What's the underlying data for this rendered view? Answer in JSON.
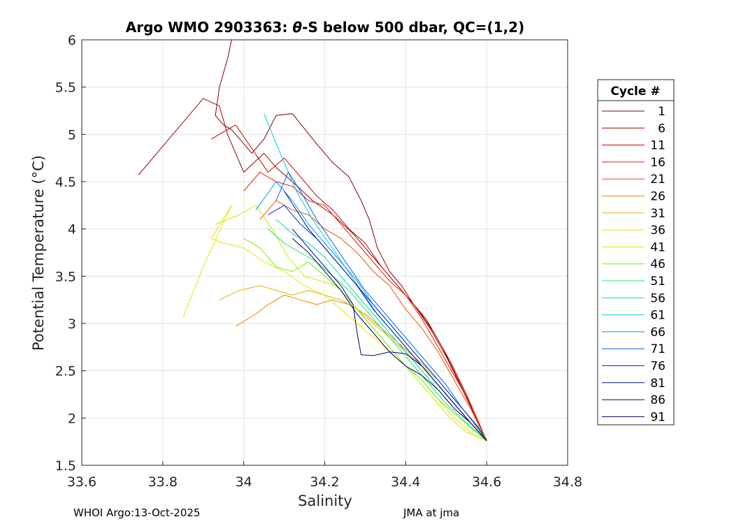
{
  "chart_data": {
    "type": "line",
    "title_prefix": "Argo WMO 2903363: ",
    "title_symbol": "θ",
    "title_suffix": "-S below 500 dbar,  QC=(1,2)",
    "xlabel": "Salinity",
    "ylabel": "Potential Temperature (°C)",
    "xlim": [
      33.6,
      34.8
    ],
    "ylim": [
      1.5,
      6
    ],
    "xticks": [
      "33.6",
      "33.8",
      "34",
      "34.2",
      "34.4",
      "34.6",
      "34.8"
    ],
    "yticks": [
      "1.5",
      "2",
      "2.5",
      "3",
      "3.5",
      "4",
      "4.5",
      "5",
      "5.5",
      "6"
    ],
    "grid": true,
    "legend": {
      "title": "Cycle #",
      "placement": "right",
      "entries": [
        {
          "label": "1",
          "color": "#800000"
        },
        {
          "label": "6",
          "color": "#a00000"
        },
        {
          "label": "11",
          "color": "#c80000"
        },
        {
          "label": "16",
          "color": "#e02000"
        },
        {
          "label": "21",
          "color": "#f05000"
        },
        {
          "label": "26",
          "color": "#f08000"
        },
        {
          "label": "31",
          "color": "#e8b000"
        },
        {
          "label": "36",
          "color": "#f0e000"
        },
        {
          "label": "41",
          "color": "#b8f000"
        },
        {
          "label": "46",
          "color": "#70f000"
        },
        {
          "label": "51",
          "color": "#20e860"
        },
        {
          "label": "56",
          "color": "#00e0a0"
        },
        {
          "label": "61",
          "color": "#00c8e0"
        },
        {
          "label": "66",
          "color": "#0098e8"
        },
        {
          "label": "71",
          "color": "#0060f0"
        },
        {
          "label": "76",
          "color": "#0030d0"
        },
        {
          "label": "81",
          "color": "#0010a8"
        },
        {
          "label": "86",
          "color": "#000080"
        },
        {
          "label": "91",
          "color": "#000060"
        }
      ]
    },
    "series": [
      {
        "name": "1",
        "color": "#800000",
        "x": [
          33.97,
          33.96,
          33.94,
          33.93,
          33.95,
          33.97,
          33.99,
          34.02,
          34.05,
          34.08,
          34.12,
          34.18,
          34.22,
          34.26,
          34.29,
          34.31,
          34.33,
          34.36,
          34.39,
          34.42,
          34.45,
          34.49,
          34.53,
          34.57,
          34.6
        ],
        "y": [
          6.0,
          5.8,
          5.5,
          5.2,
          5.1,
          5.05,
          4.95,
          4.8,
          4.95,
          5.2,
          5.22,
          4.9,
          4.7,
          4.55,
          4.3,
          4.1,
          3.8,
          3.55,
          3.4,
          3.2,
          3.05,
          2.75,
          2.4,
          2.05,
          1.76
        ]
      },
      {
        "name": "6",
        "color": "#a00000",
        "x": [
          33.74,
          33.9,
          33.94,
          33.96,
          34.0,
          34.05,
          34.08,
          34.12,
          34.17,
          34.22,
          34.27,
          34.31,
          34.35,
          34.39,
          34.43,
          34.47,
          34.51,
          34.55,
          34.6
        ],
        "y": [
          4.57,
          5.38,
          5.3,
          5.0,
          4.6,
          4.8,
          4.65,
          4.5,
          4.3,
          4.15,
          3.95,
          3.75,
          3.55,
          3.35,
          3.15,
          2.9,
          2.6,
          2.25,
          1.76
        ]
      },
      {
        "name": "11",
        "color": "#c80000",
        "x": [
          33.92,
          33.98,
          34.02,
          34.06,
          34.1,
          34.14,
          34.18,
          34.22,
          34.26,
          34.3,
          34.34,
          34.38,
          34.42,
          34.46,
          34.5,
          34.54,
          34.6
        ],
        "y": [
          4.95,
          5.1,
          4.85,
          4.6,
          4.75,
          4.55,
          4.35,
          4.2,
          4.0,
          3.85,
          3.6,
          3.4,
          3.2,
          2.95,
          2.65,
          2.3,
          1.76
        ]
      },
      {
        "name": "16",
        "color": "#e02000",
        "x": [
          34.0,
          34.04,
          34.08,
          34.12,
          34.16,
          34.2,
          34.24,
          34.28,
          34.32,
          34.36,
          34.4,
          34.44,
          34.48,
          34.52,
          34.56,
          34.6
        ],
        "y": [
          4.4,
          4.6,
          4.5,
          4.45,
          4.3,
          4.25,
          4.05,
          3.85,
          3.65,
          3.45,
          3.3,
          3.05,
          2.75,
          2.45,
          2.15,
          1.76
        ]
      },
      {
        "name": "21",
        "color": "#f05000",
        "x": [
          34.04,
          34.08,
          34.12,
          34.16,
          34.2,
          34.24,
          34.28,
          34.32,
          34.36,
          34.4,
          34.44,
          34.48,
          34.52,
          34.56,
          34.6
        ],
        "y": [
          4.1,
          4.3,
          4.2,
          4.15,
          4.0,
          3.9,
          3.75,
          3.55,
          3.4,
          3.15,
          2.95,
          2.7,
          2.4,
          2.1,
          1.76
        ]
      },
      {
        "name": "26",
        "color": "#f08000",
        "x": [
          33.98,
          34.03,
          34.06,
          34.1,
          34.14,
          34.18,
          34.22,
          34.26,
          34.3,
          34.34,
          34.38,
          34.42,
          34.46,
          34.5,
          34.55,
          34.6
        ],
        "y": [
          2.97,
          3.1,
          3.2,
          3.3,
          3.25,
          3.2,
          3.25,
          3.2,
          3.1,
          2.95,
          2.8,
          2.65,
          2.5,
          2.3,
          2.05,
          1.76
        ]
      },
      {
        "name": "31",
        "color": "#e8b000",
        "x": [
          33.94,
          33.99,
          34.04,
          34.08,
          34.12,
          34.16,
          34.2,
          34.24,
          34.28,
          34.32,
          34.36,
          34.4,
          34.44,
          34.48,
          34.52,
          34.56,
          34.6
        ],
        "y": [
          3.25,
          3.35,
          3.4,
          3.35,
          3.3,
          3.35,
          3.3,
          3.25,
          3.15,
          3.0,
          2.85,
          2.7,
          2.55,
          2.4,
          2.2,
          2.0,
          1.78
        ]
      },
      {
        "name": "36",
        "color": "#f0e000",
        "x": [
          33.85,
          33.9,
          33.97,
          33.92,
          33.95,
          34.0,
          34.05,
          34.1,
          34.15,
          34.2,
          34.24,
          34.28,
          34.32,
          34.36,
          34.4,
          34.44,
          34.48,
          34.52,
          34.56,
          34.6
        ],
        "y": [
          3.06,
          3.6,
          4.25,
          3.9,
          3.85,
          3.8,
          3.65,
          3.55,
          3.4,
          3.3,
          3.15,
          3.0,
          2.85,
          2.7,
          2.55,
          2.4,
          2.2,
          2.0,
          1.85,
          1.76
        ]
      },
      {
        "name": "41",
        "color": "#b8f000",
        "x": [
          33.93,
          33.99,
          34.03,
          34.07,
          34.11,
          34.15,
          34.19,
          34.23,
          34.27,
          34.31,
          34.35,
          34.39,
          34.43,
          34.47,
          34.51,
          34.55,
          34.6
        ],
        "y": [
          4.05,
          4.15,
          4.25,
          4.0,
          3.7,
          3.5,
          3.45,
          3.4,
          3.2,
          3.0,
          2.8,
          2.6,
          2.4,
          2.2,
          2.0,
          1.85,
          1.76
        ]
      },
      {
        "name": "46",
        "color": "#70f000",
        "x": [
          34.0,
          34.04,
          34.08,
          34.12,
          34.16,
          34.2,
          34.24,
          34.28,
          34.32,
          34.36,
          34.4,
          34.44,
          34.48,
          34.52,
          34.56,
          34.6
        ],
        "y": [
          3.9,
          3.8,
          3.6,
          3.55,
          3.65,
          3.5,
          3.35,
          3.15,
          2.95,
          2.75,
          2.55,
          2.4,
          2.2,
          2.05,
          1.9,
          1.76
        ]
      },
      {
        "name": "51",
        "color": "#20e860",
        "x": [
          34.06,
          34.1,
          34.14,
          34.18,
          34.22,
          34.26,
          34.3,
          34.34,
          34.38,
          34.42,
          34.46,
          34.5,
          34.55,
          34.6
        ],
        "y": [
          4.0,
          3.85,
          3.75,
          3.65,
          3.5,
          3.35,
          3.15,
          2.95,
          2.75,
          2.55,
          2.35,
          2.15,
          1.95,
          1.76
        ]
      },
      {
        "name": "56",
        "color": "#00e0a0",
        "x": [
          34.08,
          34.12,
          34.16,
          34.2,
          34.24,
          34.28,
          34.32,
          34.36,
          34.4,
          34.44,
          34.48,
          34.52,
          34.56,
          34.6
        ],
        "y": [
          4.1,
          3.95,
          3.85,
          3.7,
          3.5,
          3.3,
          3.1,
          2.9,
          2.7,
          2.5,
          2.3,
          2.1,
          1.95,
          1.76
        ]
      },
      {
        "name": "61",
        "color": "#00c8e0",
        "x": [
          34.05,
          34.09,
          34.13,
          34.17,
          34.21,
          34.25,
          34.29,
          34.33,
          34.37,
          34.41,
          34.45,
          34.49,
          34.53,
          34.57,
          34.6
        ],
        "y": [
          5.22,
          4.8,
          4.4,
          4.1,
          3.85,
          3.6,
          3.35,
          3.1,
          2.9,
          2.7,
          2.5,
          2.3,
          2.1,
          1.9,
          1.76
        ]
      },
      {
        "name": "66",
        "color": "#0098e8",
        "x": [
          34.03,
          34.08,
          34.12,
          34.16,
          34.2,
          34.24,
          34.28,
          34.32,
          34.36,
          34.4,
          34.44,
          34.48,
          34.52,
          34.56,
          34.6
        ],
        "y": [
          4.2,
          4.5,
          4.3,
          4.05,
          3.85,
          3.65,
          3.45,
          3.2,
          3.0,
          2.8,
          2.6,
          2.4,
          2.2,
          2.0,
          1.76
        ]
      },
      {
        "name": "71",
        "color": "#0060f0",
        "x": [
          34.08,
          34.11,
          34.14,
          34.18,
          34.22,
          34.26,
          34.3,
          34.34,
          34.38,
          34.42,
          34.46,
          34.5,
          34.54,
          34.58,
          34.6
        ],
        "y": [
          4.3,
          4.6,
          4.4,
          4.1,
          3.85,
          3.6,
          3.35,
          3.15,
          2.95,
          2.75,
          2.55,
          2.35,
          2.1,
          1.9,
          1.76
        ]
      },
      {
        "name": "76",
        "color": "#0030d0",
        "x": [
          34.06,
          34.1,
          34.14,
          34.18,
          34.22,
          34.26,
          34.3,
          34.34,
          34.38,
          34.42,
          34.46,
          34.5,
          34.54,
          34.58,
          34.6
        ],
        "y": [
          4.15,
          4.25,
          4.05,
          3.9,
          3.7,
          3.5,
          3.3,
          3.1,
          2.9,
          2.7,
          2.5,
          2.3,
          2.1,
          1.9,
          1.76
        ]
      },
      {
        "name": "81",
        "color": "#0010a8",
        "x": [
          34.1,
          34.13,
          34.16,
          34.2,
          34.24,
          34.28,
          34.32,
          34.36,
          34.4,
          34.44,
          34.48,
          34.52,
          34.56,
          34.6
        ],
        "y": [
          4.4,
          4.2,
          4.0,
          3.8,
          3.6,
          3.4,
          3.15,
          2.95,
          2.75,
          2.55,
          2.35,
          2.15,
          1.95,
          1.76
        ]
      },
      {
        "name": "86",
        "color": "#000080",
        "x": [
          34.12,
          34.16,
          34.2,
          34.24,
          34.27,
          34.28,
          34.29,
          34.32,
          34.36,
          34.4,
          34.44,
          34.48,
          34.52,
          34.56,
          34.6
        ],
        "y": [
          4.0,
          3.8,
          3.6,
          3.4,
          3.2,
          2.9,
          2.67,
          2.66,
          2.7,
          2.68,
          2.55,
          2.35,
          2.15,
          1.95,
          1.76
        ]
      },
      {
        "name": "91",
        "color": "#000060",
        "x": [
          34.12,
          34.16,
          34.2,
          34.24,
          34.28,
          34.32,
          34.36,
          34.4,
          34.44,
          34.48,
          34.52,
          34.56,
          34.6
        ],
        "y": [
          3.9,
          3.75,
          3.55,
          3.35,
          3.1,
          2.9,
          2.7,
          2.55,
          2.45,
          2.3,
          2.1,
          1.95,
          1.76
        ]
      }
    ]
  },
  "footer": {
    "left": "WHOI Argo:13-Oct-2025",
    "right": "JMA at jma"
  }
}
